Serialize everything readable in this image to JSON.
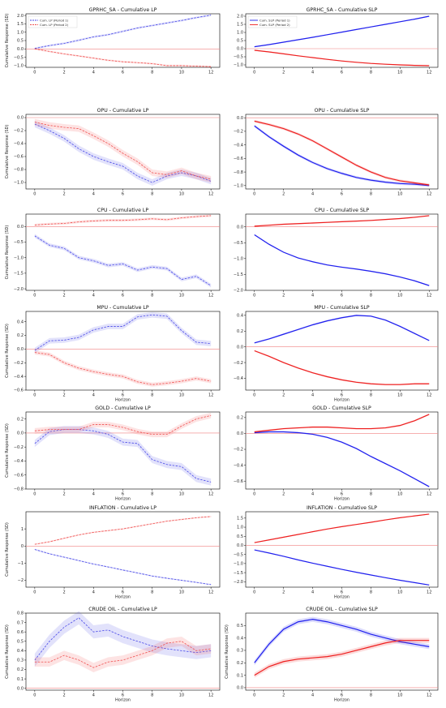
{
  "chart_data": [
    {
      "type": "line",
      "title": "GPRHC_SA  - Cumulative LP",
      "xlabel": "",
      "ylabel": "Cumulative Response (SD)",
      "ylim": [
        -1.1,
        2.1
      ],
      "yticks": [
        -1.0,
        -0.5,
        0.0,
        0.5,
        1.0,
        1.5,
        2.0
      ],
      "xticks": [
        0,
        2,
        4,
        6,
        8,
        10,
        12
      ],
      "legend": [
        "Cum. LP (Period 1)",
        "Cum. LP (Period 2)"
      ],
      "legend_loc": "upper-left",
      "style": "dashed",
      "series": [
        {
          "name": "Cum. LP (Period 1)",
          "color": "#4a4ae8",
          "values": [
            0.03,
            0.2,
            0.33,
            0.52,
            0.72,
            0.85,
            1.05,
            1.25,
            1.4,
            1.55,
            1.7,
            1.87,
            2.02
          ],
          "band": 0.06
        },
        {
          "name": "Cum. LP (Period 2)",
          "color": "#f05050",
          "values": [
            0.0,
            -0.15,
            -0.3,
            -0.42,
            -0.55,
            -0.68,
            -0.77,
            -0.82,
            -0.88,
            -1.0,
            -1.0,
            -1.03,
            -1.06
          ],
          "band": 0.05
        }
      ]
    },
    {
      "type": "line",
      "title": "GPRHC_SA  - Cumulative SLP",
      "xlabel": "",
      "ylabel": "",
      "ylim": [
        -1.15,
        2.15
      ],
      "yticks": [
        -1.0,
        -0.5,
        0.0,
        0.5,
        1.0,
        1.5,
        2.0
      ],
      "xticks": [
        0,
        2,
        4,
        6,
        8,
        10,
        12
      ],
      "legend": [
        "Cum. SLP (Period 1)",
        "Cum. SLP (Period 2)"
      ],
      "legend_loc": "upper-left",
      "style": "solid",
      "series": [
        {
          "name": "Cum. SLP (Period 1)",
          "color": "#1f1fee",
          "values": [
            0.12,
            0.25,
            0.4,
            0.55,
            0.7,
            0.86,
            1.02,
            1.18,
            1.34,
            1.5,
            1.66,
            1.82,
            2.0
          ],
          "band": 0.03
        },
        {
          "name": "Cum. SLP (Period 2)",
          "color": "#ee1f1f",
          "values": [
            -0.1,
            -0.2,
            -0.32,
            -0.44,
            -0.55,
            -0.66,
            -0.76,
            -0.84,
            -0.91,
            -0.96,
            -1.0,
            -1.03,
            -1.05
          ],
          "band": 0.03
        }
      ]
    },
    {
      "type": "line",
      "title": "OPU  - Cumulative LP",
      "xlabel": "",
      "ylabel": "Cumulative Response (SD)",
      "ylim": [
        -1.1,
        0.05
      ],
      "yticks": [
        -1.0,
        -0.8,
        -0.6,
        -0.4,
        -0.2,
        0.0
      ],
      "xticks": [
        0,
        2,
        4,
        6,
        8,
        10,
        12
      ],
      "style": "dashed",
      "series": [
        {
          "color": "#4a4ae8",
          "values": [
            -0.1,
            -0.2,
            -0.32,
            -0.48,
            -0.6,
            -0.68,
            -0.75,
            -0.9,
            -1.0,
            -0.9,
            -0.85,
            -0.9,
            -0.98
          ],
          "band": 0.05
        },
        {
          "color": "#f05050",
          "values": [
            -0.07,
            -0.12,
            -0.15,
            -0.17,
            -0.28,
            -0.4,
            -0.55,
            -0.68,
            -0.85,
            -0.88,
            -0.82,
            -0.9,
            -0.95
          ],
          "band": 0.05
        }
      ]
    },
    {
      "type": "line",
      "title": "OPU  - Cumulative SLP",
      "xlabel": "",
      "ylabel": "",
      "ylim": [
        -1.05,
        0.05
      ],
      "yticks": [
        -1.0,
        -0.8,
        -0.6,
        -0.4,
        -0.2,
        0.0
      ],
      "xticks": [
        0,
        2,
        4,
        6,
        8,
        10,
        12
      ],
      "style": "solid",
      "series": [
        {
          "color": "#1f1fee",
          "values": [
            -0.12,
            -0.28,
            -0.42,
            -0.55,
            -0.66,
            -0.75,
            -0.82,
            -0.88,
            -0.92,
            -0.95,
            -0.97,
            -0.98,
            -1.0
          ],
          "band": 0.02
        },
        {
          "color": "#ee1f1f",
          "values": [
            -0.05,
            -0.1,
            -0.16,
            -0.24,
            -0.34,
            -0.46,
            -0.58,
            -0.7,
            -0.8,
            -0.88,
            -0.93,
            -0.96,
            -0.99
          ],
          "band": 0.02
        }
      ]
    },
    {
      "type": "line",
      "title": "CPU  - Cumulative LP",
      "xlabel": "",
      "ylabel": "Cumulative Response (SD)",
      "ylim": [
        -2.05,
        0.4
      ],
      "yticks": [
        -2.0,
        -1.5,
        -1.0,
        -0.5,
        0.0
      ],
      "xticks": [
        0,
        2,
        4,
        6,
        8,
        10,
        12
      ],
      "style": "dashed",
      "series": [
        {
          "color": "#4a4ae8",
          "values": [
            -0.3,
            -0.6,
            -0.7,
            -1.0,
            -1.1,
            -1.25,
            -1.2,
            -1.4,
            -1.3,
            -1.35,
            -1.7,
            -1.6,
            -1.9
          ],
          "band": 0.06
        },
        {
          "color": "#f05050",
          "values": [
            0.05,
            0.08,
            0.1,
            0.15,
            0.18,
            0.2,
            0.2,
            0.22,
            0.25,
            0.22,
            0.28,
            0.32,
            0.35
          ],
          "band": 0.04
        }
      ]
    },
    {
      "type": "line",
      "title": "CPU  - Cumulative SLP",
      "xlabel": "",
      "ylabel": "",
      "ylim": [
        -2.0,
        0.4
      ],
      "yticks": [
        -2.0,
        -1.5,
        -1.0,
        -0.5,
        0.0
      ],
      "xticks": [
        0,
        2,
        4,
        6,
        8,
        10,
        12
      ],
      "style": "solid",
      "series": [
        {
          "color": "#1f1fee",
          "values": [
            -0.25,
            -0.55,
            -0.8,
            -0.98,
            -1.1,
            -1.2,
            -1.27,
            -1.33,
            -1.4,
            -1.48,
            -1.58,
            -1.7,
            -1.85
          ],
          "band": 0.02
        },
        {
          "color": "#ee1f1f",
          "values": [
            0.02,
            0.05,
            0.08,
            0.1,
            0.12,
            0.14,
            0.16,
            0.18,
            0.2,
            0.23,
            0.26,
            0.3,
            0.35
          ],
          "band": 0.02
        }
      ]
    },
    {
      "type": "line",
      "title": "MPU  - Cumulative LP",
      "xlabel": "Horizon",
      "ylabel": "Cumulative Response (SD)",
      "ylim": [
        -0.6,
        0.55
      ],
      "yticks": [
        -0.6,
        -0.4,
        -0.2,
        0.0,
        0.2,
        0.4
      ],
      "xticks": [
        0,
        2,
        4,
        6,
        8,
        10,
        12
      ],
      "style": "dashed",
      "series": [
        {
          "color": "#4a4ae8",
          "values": [
            -0.02,
            0.12,
            0.13,
            0.17,
            0.28,
            0.33,
            0.33,
            0.47,
            0.5,
            0.48,
            0.27,
            0.1,
            0.08
          ],
          "band": 0.04
        },
        {
          "color": "#f05050",
          "values": [
            -0.05,
            -0.08,
            -0.2,
            -0.28,
            -0.33,
            -0.37,
            -0.4,
            -0.48,
            -0.52,
            -0.5,
            -0.47,
            -0.43,
            -0.47
          ],
          "band": 0.03
        }
      ]
    },
    {
      "type": "line",
      "title": "MPU  - Cumulative SLP",
      "xlabel": "Horizon",
      "ylabel": "",
      "ylim": [
        -0.55,
        0.45
      ],
      "yticks": [
        -0.4,
        -0.2,
        0.0,
        0.2,
        0.4
      ],
      "xticks": [
        0,
        2,
        4,
        6,
        8,
        10,
        12
      ],
      "style": "solid",
      "series": [
        {
          "color": "#1f1fee",
          "values": [
            0.05,
            0.1,
            0.16,
            0.22,
            0.28,
            0.33,
            0.37,
            0.4,
            0.39,
            0.34,
            0.26,
            0.17,
            0.08
          ],
          "band": 0.01
        },
        {
          "color": "#ee1f1f",
          "values": [
            -0.05,
            -0.12,
            -0.2,
            -0.27,
            -0.33,
            -0.38,
            -0.42,
            -0.45,
            -0.47,
            -0.48,
            -0.48,
            -0.47,
            -0.47
          ],
          "band": 0.01
        }
      ]
    },
    {
      "type": "line",
      "title": "GOLD  - Cumulative LP",
      "xlabel": "Horizon",
      "ylabel": "Cumulative Response (SD)",
      "ylim": [
        -0.8,
        0.3
      ],
      "yticks": [
        -0.8,
        -0.6,
        -0.4,
        -0.2,
        0.0,
        0.2
      ],
      "xticks": [
        0,
        2,
        4,
        6,
        8,
        10,
        12
      ],
      "style": "dashed",
      "series": [
        {
          "color": "#4a4ae8",
          "values": [
            -0.15,
            0.02,
            0.05,
            0.05,
            0.03,
            -0.02,
            -0.13,
            -0.15,
            -0.38,
            -0.45,
            -0.48,
            -0.65,
            -0.7
          ],
          "band": 0.05
        },
        {
          "color": "#f05050",
          "values": [
            0.03,
            0.05,
            0.05,
            0.05,
            0.12,
            0.12,
            0.08,
            0.02,
            -0.02,
            -0.02,
            0.1,
            0.2,
            0.25
          ],
          "band": 0.04
        }
      ]
    },
    {
      "type": "line",
      "title": "GOLD  - Cumulative SLP",
      "xlabel": "Horizon",
      "ylabel": "",
      "ylim": [
        -0.7,
        0.27
      ],
      "yticks": [
        -0.6,
        -0.4,
        -0.2,
        0.0,
        0.2
      ],
      "xticks": [
        0,
        2,
        4,
        6,
        8,
        10,
        12
      ],
      "style": "solid",
      "series": [
        {
          "color": "#1f1fee",
          "values": [
            0.01,
            0.02,
            0.02,
            0.01,
            -0.01,
            -0.05,
            -0.11,
            -0.19,
            -0.29,
            -0.38,
            -0.47,
            -0.57,
            -0.67
          ],
          "band": 0.01
        },
        {
          "color": "#ee1f1f",
          "values": [
            0.02,
            0.04,
            0.06,
            0.07,
            0.08,
            0.08,
            0.07,
            0.06,
            0.06,
            0.07,
            0.1,
            0.16,
            0.24
          ],
          "band": 0.01
        }
      ]
    },
    {
      "type": "line",
      "title": "INFLATION - Cumulative LP",
      "xlabel": "Horizon",
      "ylabel": "Cumulative Response (SD)",
      "ylim": [
        -2.4,
        2.0
      ],
      "yticks": [
        -2,
        -1,
        0,
        1
      ],
      "xticks": [
        0,
        2,
        4,
        6,
        8,
        10,
        12
      ],
      "style": "dashed",
      "series": [
        {
          "color": "#4a4ae8",
          "values": [
            -0.2,
            -0.45,
            -0.65,
            -0.85,
            -1.05,
            -1.22,
            -1.4,
            -1.57,
            -1.75,
            -1.88,
            -2.0,
            -2.12,
            -2.25
          ],
          "band": 0.04
        },
        {
          "color": "#f05050",
          "values": [
            0.1,
            0.25,
            0.45,
            0.65,
            0.8,
            0.9,
            1.0,
            1.15,
            1.3,
            1.45,
            1.55,
            1.65,
            1.72
          ],
          "band": 0.04
        }
      ]
    },
    {
      "type": "line",
      "title": "INFLATION - Cumulative SLP",
      "xlabel": "Horizon",
      "ylabel": "",
      "ylim": [
        -2.3,
        1.85
      ],
      "yticks": [
        -2.0,
        -1.5,
        -1.0,
        -0.5,
        0.0,
        0.5,
        1.0,
        1.5
      ],
      "xticks": [
        0,
        2,
        4,
        6,
        8,
        10,
        12
      ],
      "style": "solid",
      "series": [
        {
          "color": "#1f1fee",
          "values": [
            -0.25,
            -0.42,
            -0.6,
            -0.8,
            -0.98,
            -1.15,
            -1.32,
            -1.48,
            -1.63,
            -1.78,
            -1.92,
            -2.05,
            -2.18
          ],
          "band": 0.02
        },
        {
          "color": "#ee1f1f",
          "values": [
            0.15,
            0.3,
            0.45,
            0.6,
            0.75,
            0.9,
            1.03,
            1.15,
            1.27,
            1.4,
            1.52,
            1.62,
            1.72
          ],
          "band": 0.02
        }
      ]
    },
    {
      "type": "line",
      "title": "CRUDE OIL - Cumulative LP",
      "xlabel": "Horizon",
      "ylabel": "Cumulative Response (SD)",
      "ylim": [
        -0.02,
        0.8
      ],
      "yticks": [
        0.0,
        0.1,
        0.2,
        0.3,
        0.4,
        0.5,
        0.6,
        0.7,
        0.8
      ],
      "xticks": [
        0,
        2,
        4,
        6,
        8,
        10,
        12
      ],
      "style": "dashed",
      "series": [
        {
          "color": "#4a4ae8",
          "values": [
            0.3,
            0.5,
            0.65,
            0.75,
            0.6,
            0.62,
            0.55,
            0.5,
            0.45,
            0.42,
            0.4,
            0.38,
            0.4
          ],
          "band": 0.07
        },
        {
          "color": "#f05050",
          "values": [
            0.28,
            0.28,
            0.35,
            0.3,
            0.22,
            0.28,
            0.3,
            0.35,
            0.4,
            0.48,
            0.5,
            0.4,
            0.42
          ],
          "band": 0.05
        }
      ]
    },
    {
      "type": "line",
      "title": "CRUDE OIL - Cumulative SLP",
      "xlabel": "Horizon",
      "ylabel": "Cumulative Response (SD)",
      "ylim": [
        -0.02,
        0.6
      ],
      "yticks": [
        0.0,
        0.1,
        0.2,
        0.3,
        0.4,
        0.5
      ],
      "xticks": [
        0,
        2,
        4,
        6,
        8,
        10,
        12
      ],
      "style": "solid",
      "series": [
        {
          "color": "#1f1fee",
          "values": [
            0.2,
            0.35,
            0.47,
            0.53,
            0.55,
            0.53,
            0.5,
            0.47,
            0.43,
            0.4,
            0.37,
            0.35,
            0.33
          ],
          "band": 0.02
        },
        {
          "color": "#ee1f1f",
          "values": [
            0.1,
            0.17,
            0.21,
            0.23,
            0.24,
            0.25,
            0.27,
            0.3,
            0.33,
            0.36,
            0.38,
            0.38,
            0.38
          ],
          "band": 0.02
        }
      ]
    }
  ]
}
